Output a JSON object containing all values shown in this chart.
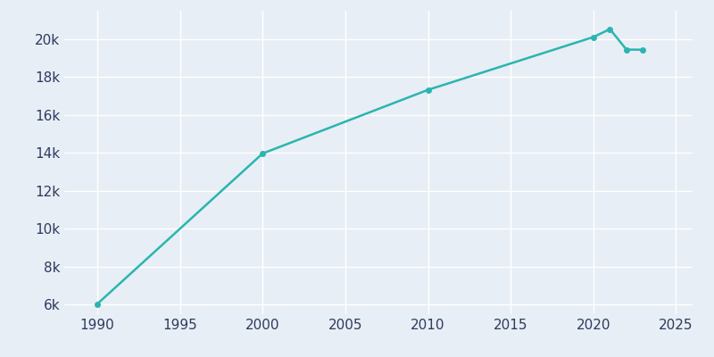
{
  "years": [
    1990,
    2000,
    2010,
    2020,
    2021,
    2022,
    2023
  ],
  "population": [
    6040,
    13974,
    17327,
    20110,
    20529,
    19451,
    19442
  ],
  "line_color": "#2ab5b0",
  "marker_color": "#2ab5b0",
  "bg_color": "#e8eef5",
  "grid_color": "#ffffff",
  "text_color": "#2d3a5e",
  "xlim": [
    1988,
    2026
  ],
  "ylim": [
    5500,
    21500
  ],
  "xticks": [
    1990,
    1995,
    2000,
    2005,
    2010,
    2015,
    2020,
    2025
  ],
  "yticks": [
    6000,
    8000,
    10000,
    12000,
    14000,
    16000,
    18000,
    20000
  ],
  "line_width": 1.8,
  "marker_size": 4
}
